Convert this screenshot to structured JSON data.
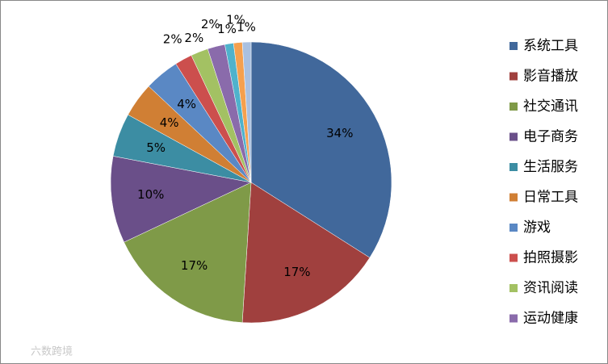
{
  "chart_data": {
    "type": "pie",
    "categories": [
      "系统工具",
      "影音播放",
      "社交通讯",
      "电子商务",
      "生活服务",
      "日常工具",
      "游戏",
      "拍照摄影",
      "资讯阅读",
      "运动健康",
      null,
      null,
      null
    ],
    "values": [
      34,
      17,
      17,
      10,
      5,
      4,
      4,
      2,
      2,
      2,
      1,
      1,
      1
    ],
    "value_labels": [
      "34%",
      "17%",
      "17%",
      "10%",
      "5%",
      "4%",
      "4%",
      "2%",
      "2%",
      "2%",
      "1%",
      "1%",
      "1%"
    ],
    "colors": [
      "#41689b",
      "#a0403e",
      "#7f9a48",
      "#6a4f89",
      "#3c8da3",
      "#d07f34",
      "#5a88c4",
      "#cc4f4d",
      "#a3c163",
      "#8a6bab",
      "#4fb2cc",
      "#f5a04e",
      "#a9c0e0"
    ],
    "legend": "right",
    "watermark": "六数跨境"
  }
}
